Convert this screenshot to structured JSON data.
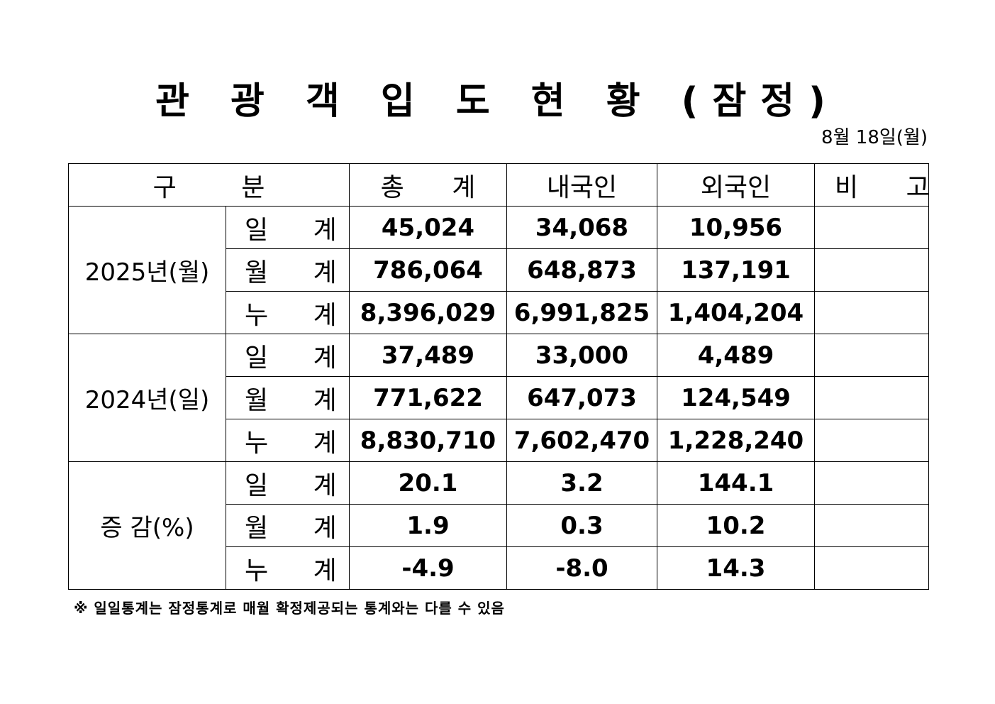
{
  "title": "관 광 객 입 도 현 황 (잠정)",
  "date": "8월 18일(월)",
  "headers": {
    "category": "구 분",
    "total": "총 계",
    "domestic": "내국인",
    "foreign": "외국인",
    "remarks": "비 고"
  },
  "groups": [
    {
      "label": "2025년(월)",
      "rows": [
        {
          "sub": "일 계",
          "total": "45,024",
          "domestic": "34,068",
          "foreign": "10,956",
          "remarks": ""
        },
        {
          "sub": "월 계",
          "total": "786,064",
          "domestic": "648,873",
          "foreign": "137,191",
          "remarks": ""
        },
        {
          "sub": "누 계",
          "total": "8,396,029",
          "domestic": "6,991,825",
          "foreign": "1,404,204",
          "remarks": ""
        }
      ]
    },
    {
      "label": "2024년(일)",
      "rows": [
        {
          "sub": "일 계",
          "total": "37,489",
          "domestic": "33,000",
          "foreign": "4,489",
          "remarks": ""
        },
        {
          "sub": "월 계",
          "total": "771,622",
          "domestic": "647,073",
          "foreign": "124,549",
          "remarks": ""
        },
        {
          "sub": "누 계",
          "total": "8,830,710",
          "domestic": "7,602,470",
          "foreign": "1,228,240",
          "remarks": ""
        }
      ]
    },
    {
      "label": "증 감(%)",
      "rows": [
        {
          "sub": "일 계",
          "total": "20.1",
          "domestic": "3.2",
          "foreign": "144.1",
          "remarks": ""
        },
        {
          "sub": "월 계",
          "total": "1.9",
          "domestic": "0.3",
          "foreign": "10.2",
          "remarks": ""
        },
        {
          "sub": "누 계",
          "total": "-4.9",
          "domestic": "-8.0",
          "foreign": "14.3",
          "remarks": ""
        }
      ]
    }
  ],
  "note": "※ 일일통계는 잠정통계로 매월 확정제공되는 통계와는 다를 수 있음"
}
